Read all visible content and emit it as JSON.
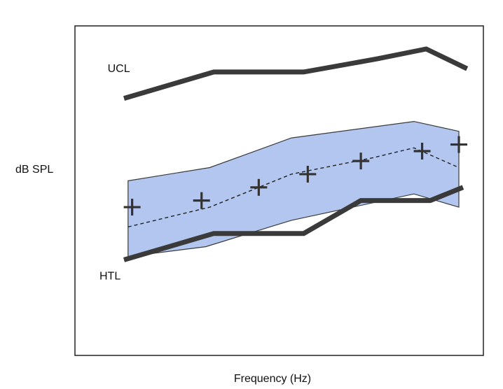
{
  "chart_data": {
    "type": "line",
    "title": "",
    "xlabel": "Frequency (Hz)",
    "ylabel": "dB SPL",
    "xlim": [
      0,
      100
    ],
    "ylim": [
      0,
      100
    ],
    "grid": false,
    "legend": "none",
    "colors": {
      "band_fill": "#b3c6ef",
      "band_edge": "#3a3a3a",
      "thick_line": "#3a3a3a",
      "dashed_line": "#222222",
      "marker": "#333333",
      "frame": "#222222"
    },
    "band": {
      "upper": [
        {
          "x": 13,
          "y": 53
        },
        {
          "x": 33,
          "y": 57
        },
        {
          "x": 53,
          "y": 66
        },
        {
          "x": 83,
          "y": 71
        },
        {
          "x": 94,
          "y": 68
        }
      ],
      "lower": [
        {
          "x": 13,
          "y": 30
        },
        {
          "x": 32,
          "y": 33
        },
        {
          "x": 53,
          "y": 41
        },
        {
          "x": 83,
          "y": 49
        },
        {
          "x": 94,
          "y": 45
        }
      ]
    },
    "series": [
      {
        "name": "UCL",
        "style": "thick",
        "points": [
          {
            "x": 12,
            "y": 78
          },
          {
            "x": 34,
            "y": 86
          },
          {
            "x": 56,
            "y": 86
          },
          {
            "x": 74,
            "y": 90
          },
          {
            "x": 86,
            "y": 93
          },
          {
            "x": 96,
            "y": 87
          }
        ]
      },
      {
        "name": "HTL",
        "style": "thick",
        "points": [
          {
            "x": 12,
            "y": 29
          },
          {
            "x": 34,
            "y": 37
          },
          {
            "x": 56,
            "y": 37
          },
          {
            "x": 70,
            "y": 47
          },
          {
            "x": 87,
            "y": 47
          },
          {
            "x": 95,
            "y": 51
          }
        ]
      },
      {
        "name": "",
        "style": "dashed",
        "points": [
          {
            "x": 13,
            "y": 39
          },
          {
            "x": 33,
            "y": 45
          },
          {
            "x": 53,
            "y": 55
          },
          {
            "x": 73,
            "y": 60
          },
          {
            "x": 83,
            "y": 63
          },
          {
            "x": 94,
            "y": 57
          }
        ]
      },
      {
        "name": "",
        "style": "markers",
        "marker": "plus",
        "points": [
          {
            "x": 14,
            "y": 45
          },
          {
            "x": 31,
            "y": 47
          },
          {
            "x": 45,
            "y": 51
          },
          {
            "x": 57,
            "y": 55
          },
          {
            "x": 70,
            "y": 59
          },
          {
            "x": 85,
            "y": 62
          },
          {
            "x": 94,
            "y": 64
          }
        ]
      }
    ],
    "annotations": [
      {
        "text": "UCL",
        "x": 8,
        "y": 86
      },
      {
        "text": "HTL",
        "x": 6,
        "y": 23
      }
    ]
  }
}
